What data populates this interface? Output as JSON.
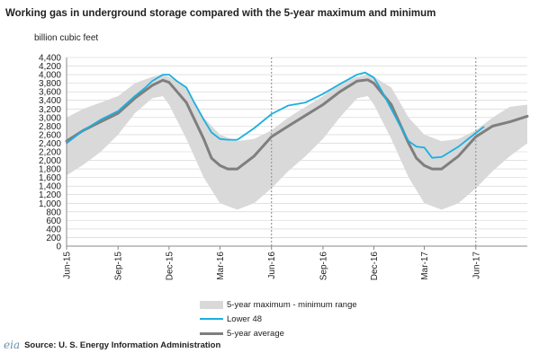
{
  "title": "Working gas in underground storage compared with the  5-year maximum and minimum",
  "y_axis_unit": "billion  cubic feet",
  "source": "Source:  U. S. Energy Information Administration",
  "logo_text": "eia",
  "colors": {
    "band": "#d9d9d9",
    "lower48": "#1ab0e0",
    "avg": "#7f7f7f",
    "axis": "#888888",
    "grid": "#cfcfcf",
    "divider": "#999999"
  },
  "chart_data": {
    "type": "line",
    "title": "Working gas in underground storage compared with the  5-year maximum and minimum",
    "ylabel": "billion  cubic feet",
    "xlabel": "",
    "ylim": [
      0,
      4400
    ],
    "yticks": [
      0,
      200,
      400,
      600,
      800,
      1000,
      1200,
      1400,
      1600,
      1800,
      2000,
      2200,
      2400,
      2600,
      2800,
      3000,
      3200,
      3400,
      3600,
      3800,
      4000,
      4200,
      4400
    ],
    "ytick_labels": [
      "0",
      "200",
      "400",
      "600",
      "800",
      "1,000",
      "1,200",
      "1,400",
      "1,600",
      "1,800",
      "2,000",
      "2,200",
      "2,400",
      "2,600",
      "2,800",
      "3,000",
      "3,200",
      "3,400",
      "3,600",
      "3,800",
      "4,000",
      "4,200",
      "4,400"
    ],
    "xlim": [
      "2015-06-01",
      "2017-09-01"
    ],
    "xticks": [
      "2015-06-01",
      "2015-09-01",
      "2015-12-01",
      "2016-03-01",
      "2016-06-01",
      "2016-09-01",
      "2016-12-01",
      "2017-03-01",
      "2017-06-01"
    ],
    "xtick_labels": [
      "Jun-15",
      "Sep-15",
      "Dec-15",
      "Mar-16",
      "Jun-16",
      "Sep-16",
      "Dec-16",
      "Mar-17",
      "Jun-17"
    ],
    "grid": "horizontal",
    "legend_position": "bottom",
    "vertical_markers": [
      "2016-06-01",
      "2017-06-01"
    ],
    "series": [
      {
        "name": "5-year maximum - minimum range",
        "kind": "band",
        "x": [
          "2015-06-01",
          "2015-07-01",
          "2015-08-01",
          "2015-09-01",
          "2015-10-01",
          "2015-11-01",
          "2015-11-20",
          "2015-12-01",
          "2016-01-01",
          "2016-02-01",
          "2016-03-01",
          "2016-04-01",
          "2016-05-01",
          "2016-06-01",
          "2016-07-01",
          "2016-08-01",
          "2016-09-01",
          "2016-10-01",
          "2016-11-01",
          "2016-11-20",
          "2016-12-01",
          "2017-01-01",
          "2017-02-01",
          "2017-03-01",
          "2017-04-01",
          "2017-05-01",
          "2017-06-01",
          "2017-07-01",
          "2017-08-01",
          "2017-09-01"
        ],
        "max": [
          3000,
          3200,
          3350,
          3500,
          3800,
          3950,
          4000,
          3950,
          3700,
          3000,
          2600,
          2450,
          2500,
          2700,
          3000,
          3250,
          3500,
          3800,
          3950,
          4000,
          3950,
          3700,
          3000,
          2600,
          2450,
          2500,
          2700,
          3000,
          3250,
          3300
        ],
        "min": [
          1650,
          1900,
          2200,
          2600,
          3100,
          3450,
          3500,
          3300,
          2500,
          1600,
          1000,
          850,
          1000,
          1350,
          1750,
          2100,
          2500,
          3000,
          3450,
          3500,
          3300,
          2500,
          1600,
          1000,
          850,
          1000,
          1350,
          1750,
          2100,
          2400
        ]
      },
      {
        "name": "Lower 48",
        "x": [
          "2015-06-01",
          "2015-07-01",
          "2015-08-01",
          "2015-09-01",
          "2015-10-01",
          "2015-10-20",
          "2015-11-01",
          "2015-11-20",
          "2015-12-01",
          "2015-12-15",
          "2016-01-01",
          "2016-01-15",
          "2016-02-01",
          "2016-02-15",
          "2016-03-01",
          "2016-03-15",
          "2016-04-01",
          "2016-05-01",
          "2016-06-01",
          "2016-07-01",
          "2016-08-01",
          "2016-09-01",
          "2016-10-01",
          "2016-11-01",
          "2016-11-15",
          "2016-12-01",
          "2016-12-15",
          "2017-01-01",
          "2017-01-15",
          "2017-02-01",
          "2017-02-15",
          "2017-03-01",
          "2017-03-15",
          "2017-04-01",
          "2017-05-01",
          "2017-06-01",
          "2017-06-15"
        ],
        "values": [
          2400,
          2700,
          2950,
          3150,
          3500,
          3700,
          3850,
          4000,
          4000,
          3850,
          3700,
          3350,
          2950,
          2650,
          2500,
          2480,
          2480,
          2750,
          3080,
          3280,
          3350,
          3550,
          3780,
          4000,
          4050,
          3930,
          3620,
          3200,
          2850,
          2450,
          2320,
          2300,
          2060,
          2080,
          2320,
          2640,
          2780
        ]
      },
      {
        "name": "5-year average",
        "x": [
          "2015-06-01",
          "2015-07-01",
          "2015-08-01",
          "2015-09-01",
          "2015-10-01",
          "2015-11-01",
          "2015-11-20",
          "2015-12-01",
          "2016-01-01",
          "2016-02-01",
          "2016-02-15",
          "2016-03-01",
          "2016-03-15",
          "2016-04-01",
          "2016-05-01",
          "2016-06-01",
          "2016-07-01",
          "2016-08-01",
          "2016-09-01",
          "2016-10-01",
          "2016-11-01",
          "2016-11-20",
          "2016-12-01",
          "2017-01-01",
          "2017-02-01",
          "2017-02-15",
          "2017-03-01",
          "2017-03-15",
          "2017-04-01",
          "2017-05-01",
          "2017-06-01",
          "2017-07-01",
          "2017-08-01",
          "2017-09-01"
        ],
        "values": [
          2450,
          2700,
          2900,
          3100,
          3450,
          3750,
          3870,
          3820,
          3350,
          2500,
          2050,
          1880,
          1800,
          1800,
          2100,
          2550,
          2800,
          3050,
          3300,
          3600,
          3850,
          3880,
          3800,
          3300,
          2400,
          2050,
          1880,
          1800,
          1800,
          2100,
          2550,
          2800,
          2900,
          3030
        ]
      }
    ]
  },
  "legend": [
    {
      "label": "5-year maximum - minimum range",
      "key": "band"
    },
    {
      "label": "Lower 48",
      "key": "lower48"
    },
    {
      "label": "5-year average",
      "key": "avg"
    }
  ]
}
